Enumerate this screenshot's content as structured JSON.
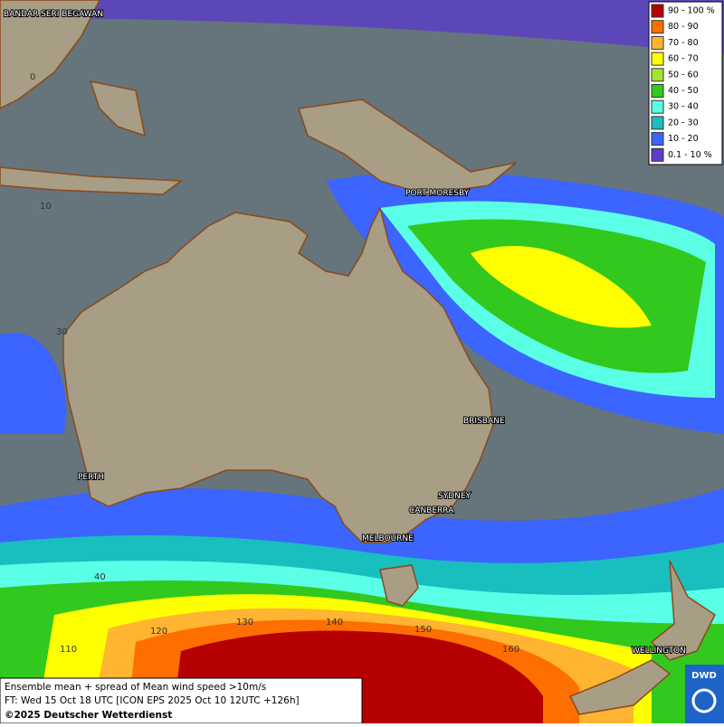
{
  "places": [
    "BANDAR SERI BEGAWAN",
    "PORT MORESBY",
    "BRISBANE",
    "SYDNEY",
    "CANBERRA",
    "MELBOURNE",
    "PERTH",
    "WELLINGTON"
  ],
  "grid_labels": [
    0,
    10,
    30,
    40,
    110,
    120,
    130,
    140,
    150,
    160
  ],
  "legend": [
    {
      "label": "90 - 100 %",
      "color": "#b40000"
    },
    {
      "label": "80 - 90",
      "color": "#ff6e00"
    },
    {
      "label": "70 - 80",
      "color": "#ffb432"
    },
    {
      "label": "60 - 70",
      "color": "#ffff00"
    },
    {
      "label": "50 - 60",
      "color": "#a0e632"
    },
    {
      "label": "40 - 50",
      "color": "#32c81e"
    },
    {
      "label": "30 - 40",
      "color": "#5affe6"
    },
    {
      "label": "20 - 30",
      "color": "#19bebe"
    },
    {
      "label": "10 - 20",
      "color": "#3c64ff"
    },
    {
      "label": "0.1 - 10 %",
      "color": "#5a3cc8"
    }
  ],
  "caption": [
    "Ensemble mean + spread of Mean wind speed >10m/s",
    "FT: Wed 15 Oct 18 UTC [ICON EPS 2025 Oct 10 12UTC +126h]",
    "©2025 Deutscher Wetterdienst"
  ],
  "logo": "DWD"
}
